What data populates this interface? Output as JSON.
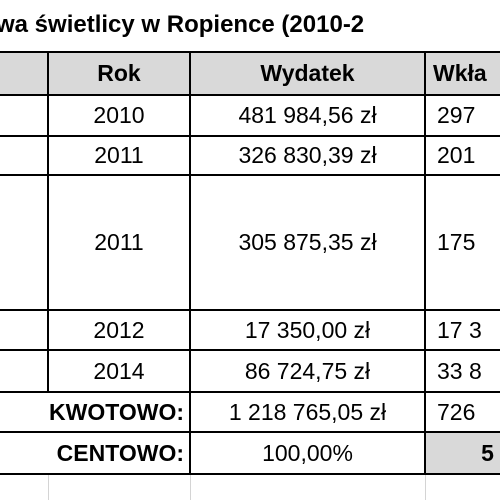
{
  "title": "wa świetlicy w Ropience (2010-2",
  "table": {
    "header": [
      "Rok",
      "Wydatek",
      "Wkła"
    ],
    "rows": [
      [
        "2010",
        "481 984,56 zł",
        "297"
      ],
      [
        "2011",
        "326 830,39 zł",
        "201"
      ],
      [
        "2011",
        "305 875,35 zł",
        "175"
      ],
      [
        "2012",
        "17 350,00 zł",
        "17 3"
      ],
      [
        "2014",
        "86 724,75 zł",
        "33 8"
      ]
    ],
    "summary": [
      [
        "KWOTOWO:",
        "1 218 765,05 zł",
        "726"
      ],
      [
        "CENTOWO:",
        "100,00%",
        "5"
      ]
    ]
  }
}
